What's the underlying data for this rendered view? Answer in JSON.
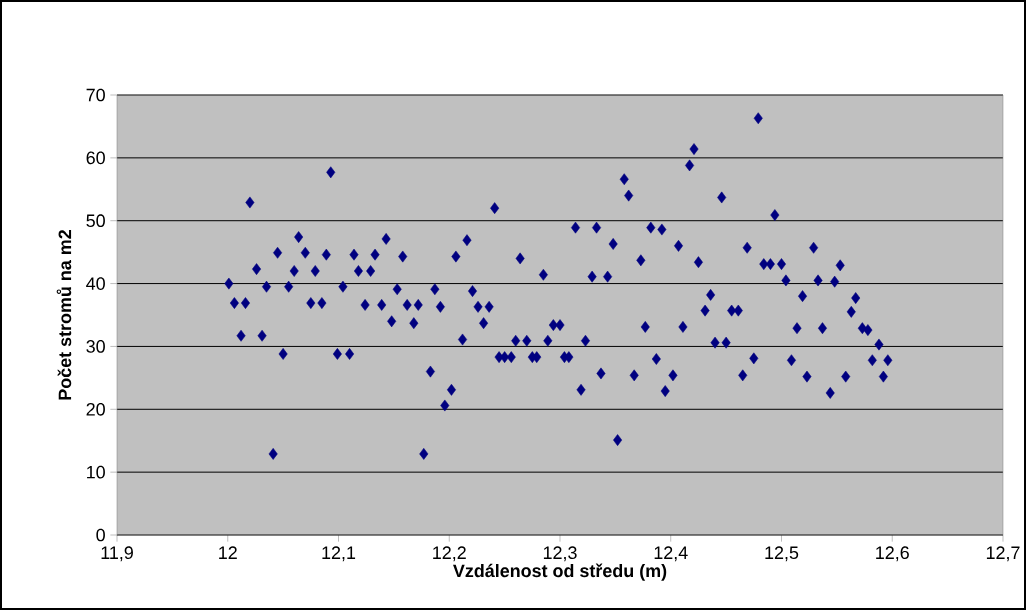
{
  "chart_data": {
    "type": "scatter",
    "xlabel": "Vzdálenost od středu (m)",
    "ylabel": "Počet stromů na m2",
    "x": [
      12.001,
      12.006,
      12.016,
      12.012,
      12.02,
      12.026,
      12.031,
      12.035,
      12.041,
      12.045,
      12.05,
      12.055,
      12.06,
      12.064,
      12.07,
      12.075,
      12.079,
      12.085,
      12.089,
      12.093,
      12.099,
      12.104,
      12.11,
      12.114,
      12.118,
      12.124,
      12.129,
      12.133,
      12.139,
      12.143,
      12.148,
      12.153,
      12.158,
      12.162,
      12.168,
      12.172,
      12.177,
      12.183,
      12.187,
      12.192,
      12.196,
      12.202,
      12.206,
      12.212,
      12.216,
      12.221,
      12.226,
      12.231,
      12.236,
      12.241,
      12.245,
      12.25,
      12.256,
      12.26,
      12.264,
      12.27,
      12.275,
      12.279,
      12.285,
      12.289,
      12.294,
      12.3,
      12.304,
      12.308,
      12.314,
      12.319,
      12.323,
      12.329,
      12.333,
      12.337,
      12.343,
      12.348,
      12.352,
      12.358,
      12.362,
      12.367,
      12.373,
      12.377,
      12.382,
      12.387,
      12.392,
      12.395,
      12.402,
      12.407,
      12.411,
      12.417,
      12.421,
      12.425,
      12.431,
      12.436,
      12.44,
      12.446,
      12.45,
      12.455,
      12.461,
      12.465,
      12.469,
      12.475,
      12.479,
      12.484,
      12.49,
      12.494,
      12.5,
      12.504,
      12.509,
      12.514,
      12.519,
      12.523,
      12.529,
      12.533,
      12.537,
      12.544,
      12.548,
      12.553,
      12.558,
      12.563,
      12.567,
      12.573,
      12.578,
      12.582,
      12.588,
      12.592,
      12.596
    ],
    "values": [
      40.0,
      36.9,
      36.9,
      31.7,
      52.9,
      42.3,
      31.7,
      39.5,
      12.9,
      44.9,
      28.8,
      39.5,
      42.0,
      47.4,
      44.9,
      36.9,
      42.0,
      36.9,
      44.6,
      57.7,
      28.8,
      39.5,
      28.8,
      44.6,
      42.0,
      36.6,
      42.0,
      44.6,
      36.6,
      47.1,
      34.0,
      39.1,
      44.3,
      36.6,
      33.7,
      36.6,
      12.9,
      26.0,
      39.1,
      36.3,
      20.6,
      23.1,
      44.3,
      31.1,
      46.9,
      38.8,
      36.3,
      33.7,
      36.3,
      52.0,
      28.3,
      28.3,
      28.3,
      30.9,
      44.0,
      30.9,
      28.3,
      28.3,
      41.4,
      30.9,
      33.4,
      33.4,
      28.3,
      28.3,
      48.9,
      23.1,
      30.9,
      41.1,
      48.9,
      25.7,
      41.1,
      46.3,
      15.1,
      56.6,
      54.0,
      25.4,
      43.7,
      33.1,
      48.9,
      28.0,
      48.6,
      22.9,
      25.4,
      46.0,
      33.1,
      58.8,
      61.4,
      43.4,
      35.7,
      38.2,
      30.6,
      53.7,
      30.6,
      35.7,
      35.7,
      25.4,
      45.7,
      28.1,
      66.3,
      43.1,
      43.1,
      50.9,
      43.1,
      40.5,
      27.8,
      32.9,
      38.0,
      25.2,
      45.7,
      40.5,
      32.9,
      22.6,
      40.3,
      42.9,
      25.2,
      35.5,
      37.7,
      32.9,
      32.6,
      27.8,
      30.3,
      25.2,
      27.8
    ],
    "color": "#000080",
    "marker": "diamond",
    "grid": "y",
    "xlim": [
      11.9,
      12.7
    ],
    "ylim": [
      0,
      70
    ],
    "xticks": [
      {
        "value": 11.9,
        "label": "11,9"
      },
      {
        "value": 12.0,
        "label": "12"
      },
      {
        "value": 12.1,
        "label": "12,1"
      },
      {
        "value": 12.2,
        "label": "12,2"
      },
      {
        "value": 12.3,
        "label": "12,3"
      },
      {
        "value": 12.4,
        "label": "12,4"
      },
      {
        "value": 12.5,
        "label": "12,5"
      },
      {
        "value": 12.6,
        "label": "12,6"
      },
      {
        "value": 12.7,
        "label": "12,7"
      }
    ],
    "yticks": [
      0,
      10,
      20,
      30,
      40,
      50,
      60,
      70
    ]
  }
}
